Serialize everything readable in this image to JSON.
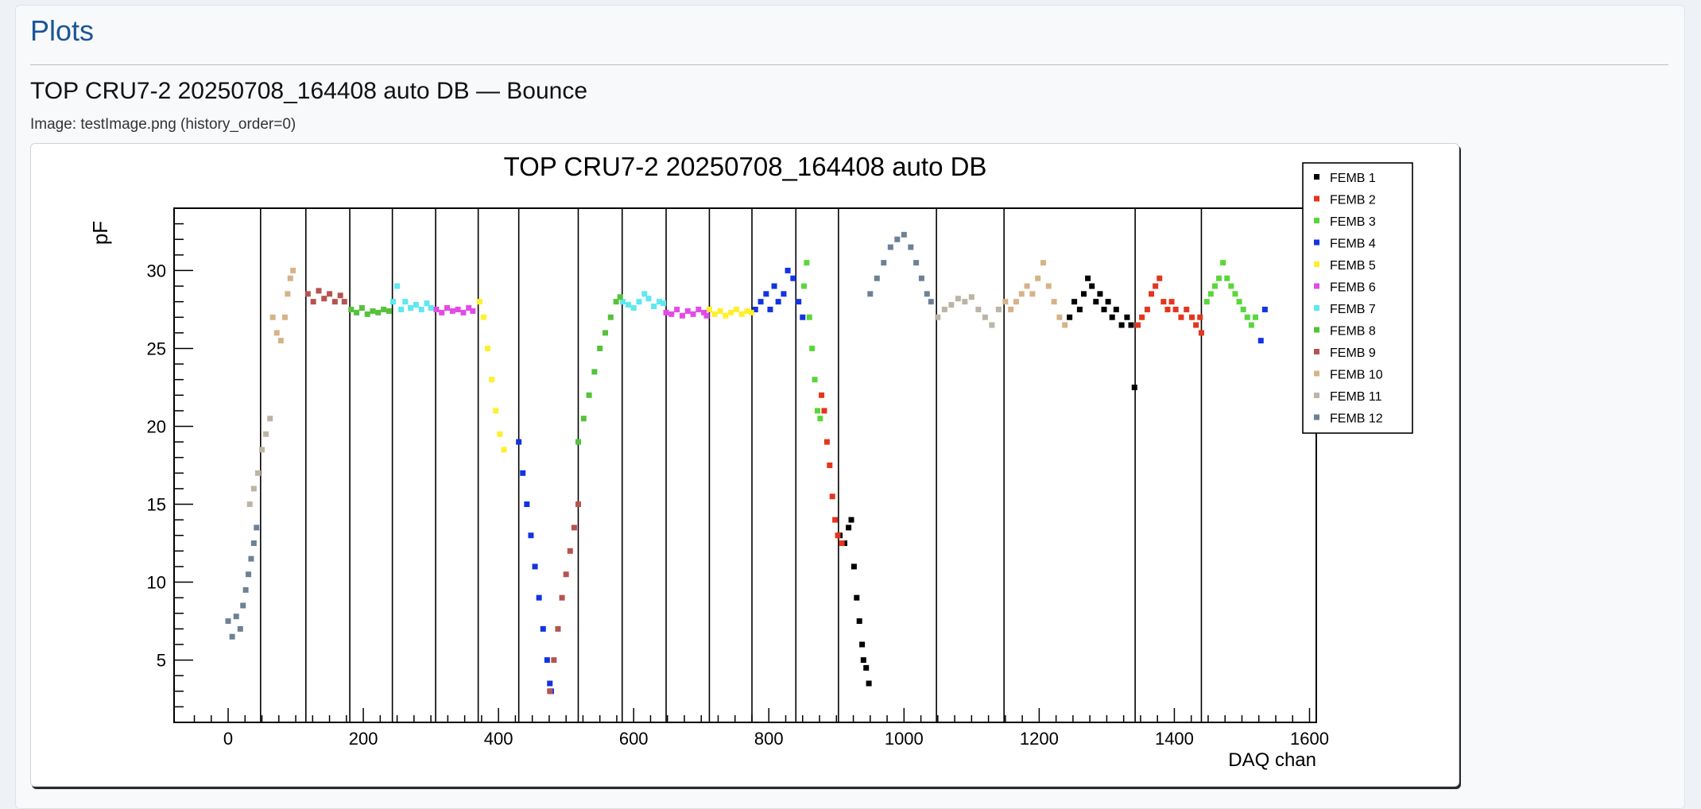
{
  "page": {
    "heading": "Plots",
    "subheading": "TOP CRU7-2 20250708_164408 auto DB — Bounce",
    "image_caption": "Image: testImage.png (history_order=0)"
  },
  "chart_data": {
    "type": "scatter",
    "title": "TOP CRU7-2 20250708_164408 auto DB",
    "xlabel": "DAQ chan",
    "ylabel": "pF",
    "xlim": [
      -80,
      1610
    ],
    "ylim": [
      1,
      34
    ],
    "x_ticks": [
      0,
      200,
      400,
      600,
      800,
      1000,
      1200,
      1400,
      1600
    ],
    "y_ticks": [
      5,
      10,
      15,
      20,
      25,
      30
    ],
    "grid": false,
    "legend_position": "top-right",
    "vertical_lines": [
      48,
      115,
      180,
      243,
      307,
      370,
      430,
      518,
      583,
      648,
      712,
      775,
      840,
      903,
      1048,
      1148,
      1342,
      1440
    ],
    "series": [
      {
        "name": "FEMB 1",
        "color": "#000000",
        "points": [
          [
            905,
            13
          ],
          [
            912,
            12.5
          ],
          [
            918,
            13.5
          ],
          [
            922,
            14
          ],
          [
            926,
            11
          ],
          [
            930,
            9
          ],
          [
            934,
            7.5
          ],
          [
            938,
            6
          ],
          [
            940,
            5
          ],
          [
            944,
            4.5
          ],
          [
            948,
            3.5
          ],
          [
            1245,
            27
          ],
          [
            1252,
            28
          ],
          [
            1260,
            27.5
          ],
          [
            1266,
            28.5
          ],
          [
            1272,
            29.5
          ],
          [
            1278,
            29
          ],
          [
            1284,
            28
          ],
          [
            1290,
            28.5
          ],
          [
            1296,
            27.5
          ],
          [
            1302,
            28
          ],
          [
            1308,
            27
          ],
          [
            1314,
            27.5
          ],
          [
            1322,
            26.5
          ],
          [
            1330,
            27
          ],
          [
            1336,
            26.5
          ],
          [
            1341,
            22.5
          ]
        ]
      },
      {
        "name": "FEMB 2",
        "color": "#e4361e",
        "points": [
          [
            878,
            22
          ],
          [
            882,
            21
          ],
          [
            886,
            19
          ],
          [
            890,
            17.5
          ],
          [
            894,
            15.5
          ],
          [
            898,
            14
          ],
          [
            902,
            13
          ],
          [
            908,
            12.5
          ],
          [
            1346,
            26.5
          ],
          [
            1352,
            27
          ],
          [
            1360,
            27.5
          ],
          [
            1366,
            28.5
          ],
          [
            1372,
            29
          ],
          [
            1378,
            29.5
          ],
          [
            1384,
            28
          ],
          [
            1390,
            27.5
          ],
          [
            1396,
            28
          ],
          [
            1402,
            27.5
          ],
          [
            1410,
            27
          ],
          [
            1418,
            27.5
          ],
          [
            1426,
            27
          ],
          [
            1432,
            26.5
          ],
          [
            1438,
            27
          ],
          [
            1440,
            26
          ]
        ]
      },
      {
        "name": "FEMB 3",
        "color": "#5ad63b",
        "points": [
          [
            852,
            29
          ],
          [
            856,
            30.5
          ],
          [
            860,
            27
          ],
          [
            864,
            25
          ],
          [
            868,
            23
          ],
          [
            872,
            21
          ],
          [
            876,
            20.5
          ],
          [
            1448,
            28
          ],
          [
            1454,
            28.5
          ],
          [
            1460,
            29
          ],
          [
            1466,
            29.5
          ],
          [
            1472,
            30.5
          ],
          [
            1478,
            29.5
          ],
          [
            1484,
            29
          ],
          [
            1490,
            28.5
          ],
          [
            1496,
            28
          ],
          [
            1502,
            27.5
          ],
          [
            1508,
            27
          ],
          [
            1514,
            26.5
          ],
          [
            1520,
            27
          ]
        ]
      },
      {
        "name": "FEMB 4",
        "color": "#1234e0",
        "points": [
          [
            430,
            19
          ],
          [
            436,
            17
          ],
          [
            442,
            15
          ],
          [
            448,
            13
          ],
          [
            454,
            11
          ],
          [
            460,
            9
          ],
          [
            466,
            7
          ],
          [
            472,
            5
          ],
          [
            476,
            3.5
          ],
          [
            478,
            3
          ],
          [
            780,
            27.5
          ],
          [
            788,
            28
          ],
          [
            796,
            28.5
          ],
          [
            802,
            27.5
          ],
          [
            808,
            29
          ],
          [
            814,
            28
          ],
          [
            822,
            28.5
          ],
          [
            828,
            30
          ],
          [
            836,
            29.5
          ],
          [
            844,
            28
          ],
          [
            850,
            27
          ],
          [
            1528,
            25.5
          ],
          [
            1534,
            27.5
          ]
        ]
      },
      {
        "name": "FEMB 5",
        "color": "#fff02a",
        "points": [
          [
            372,
            28
          ],
          [
            378,
            27
          ],
          [
            384,
            25
          ],
          [
            390,
            23
          ],
          [
            396,
            21
          ],
          [
            402,
            19.5
          ],
          [
            408,
            18.5
          ],
          [
            712,
            27.5
          ],
          [
            720,
            27.2
          ],
          [
            728,
            27.4
          ],
          [
            736,
            27.1
          ],
          [
            744,
            27.3
          ],
          [
            752,
            27.5
          ],
          [
            760,
            27.2
          ],
          [
            768,
            27.4
          ],
          [
            774,
            27.3
          ]
        ]
      },
      {
        "name": "FEMB 6",
        "color": "#e34ae7",
        "points": [
          [
            308,
            27.5
          ],
          [
            316,
            27.3
          ],
          [
            324,
            27.6
          ],
          [
            332,
            27.4
          ],
          [
            340,
            27.5
          ],
          [
            348,
            27.3
          ],
          [
            356,
            27.6
          ],
          [
            362,
            27.4
          ],
          [
            648,
            27.3
          ],
          [
            656,
            27.2
          ],
          [
            664,
            27.5
          ],
          [
            672,
            27.1
          ],
          [
            680,
            27.4
          ],
          [
            688,
            27.2
          ],
          [
            696,
            27.5
          ],
          [
            704,
            27.3
          ],
          [
            708,
            27.1
          ]
        ]
      },
      {
        "name": "FEMB 7",
        "color": "#5ee8ef",
        "points": [
          [
            244,
            28
          ],
          [
            250,
            29
          ],
          [
            256,
            27.5
          ],
          [
            262,
            28
          ],
          [
            270,
            27.6
          ],
          [
            278,
            27.8
          ],
          [
            286,
            27.5
          ],
          [
            294,
            27.9
          ],
          [
            300,
            27.6
          ],
          [
            584,
            28
          ],
          [
            592,
            27.8
          ],
          [
            600,
            27.6
          ],
          [
            608,
            28
          ],
          [
            616,
            28.5
          ],
          [
            622,
            28.2
          ],
          [
            630,
            27.7
          ],
          [
            638,
            28
          ],
          [
            644,
            27.9
          ]
        ]
      },
      {
        "name": "FEMB 8",
        "color": "#55c23a",
        "points": [
          [
            182,
            27.5
          ],
          [
            190,
            27.3
          ],
          [
            198,
            27.6
          ],
          [
            206,
            27.2
          ],
          [
            214,
            27.4
          ],
          [
            222,
            27.3
          ],
          [
            230,
            27.5
          ],
          [
            238,
            27.4
          ],
          [
            518,
            19
          ],
          [
            526,
            20.5
          ],
          [
            534,
            22
          ],
          [
            542,
            23.5
          ],
          [
            550,
            25
          ],
          [
            558,
            26
          ],
          [
            566,
            27
          ],
          [
            574,
            28
          ],
          [
            580,
            28.3
          ]
        ]
      },
      {
        "name": "FEMB 9",
        "color": "#b5544f",
        "points": [
          [
            118,
            28.5
          ],
          [
            126,
            28
          ],
          [
            134,
            28.7
          ],
          [
            142,
            28.2
          ],
          [
            150,
            28.5
          ],
          [
            158,
            28
          ],
          [
            166,
            28.4
          ],
          [
            172,
            28
          ],
          [
            476,
            3
          ],
          [
            482,
            5
          ],
          [
            488,
            7
          ],
          [
            494,
            9
          ],
          [
            500,
            10.5
          ],
          [
            506,
            12
          ],
          [
            512,
            13.5
          ],
          [
            518,
            15
          ]
        ]
      },
      {
        "name": "FEMB 10",
        "color": "#d5b38a",
        "points": [
          [
            66,
            27
          ],
          [
            72,
            26
          ],
          [
            78,
            25.5
          ],
          [
            84,
            27
          ],
          [
            88,
            28.5
          ],
          [
            92,
            29.5
          ],
          [
            96,
            30
          ],
          [
            1150,
            28
          ],
          [
            1158,
            27.5
          ],
          [
            1166,
            28
          ],
          [
            1174,
            28.5
          ],
          [
            1182,
            29
          ],
          [
            1190,
            28.5
          ],
          [
            1198,
            29.5
          ],
          [
            1206,
            30.5
          ],
          [
            1214,
            29
          ],
          [
            1222,
            28
          ],
          [
            1230,
            27
          ],
          [
            1238,
            26.5
          ]
        ]
      },
      {
        "name": "FEMB 11",
        "color": "#bcb5a6",
        "points": [
          [
            32,
            15
          ],
          [
            38,
            16
          ],
          [
            44,
            17
          ],
          [
            50,
            18.5
          ],
          [
            56,
            19.5
          ],
          [
            62,
            20.5
          ],
          [
            1050,
            27
          ],
          [
            1060,
            27.5
          ],
          [
            1070,
            27.8
          ],
          [
            1080,
            28.2
          ],
          [
            1090,
            28
          ],
          [
            1100,
            28.3
          ],
          [
            1110,
            27.5
          ],
          [
            1120,
            27
          ],
          [
            1130,
            26.5
          ],
          [
            1140,
            27.5
          ]
        ]
      },
      {
        "name": "FEMB 12",
        "color": "#6d8196",
        "points": [
          [
            0,
            7.5
          ],
          [
            6,
            6.5
          ],
          [
            12,
            7.8
          ],
          [
            18,
            7
          ],
          [
            22,
            8.5
          ],
          [
            26,
            9.5
          ],
          [
            30,
            10.5
          ],
          [
            34,
            11.5
          ],
          [
            38,
            12.5
          ],
          [
            42,
            13.5
          ],
          [
            950,
            28.5
          ],
          [
            960,
            29.5
          ],
          [
            970,
            30.5
          ],
          [
            980,
            31.5
          ],
          [
            990,
            32
          ],
          [
            1000,
            32.3
          ],
          [
            1010,
            31.5
          ],
          [
            1018,
            30.5
          ],
          [
            1026,
            29.5
          ],
          [
            1034,
            28.5
          ],
          [
            1040,
            28
          ]
        ]
      }
    ]
  }
}
